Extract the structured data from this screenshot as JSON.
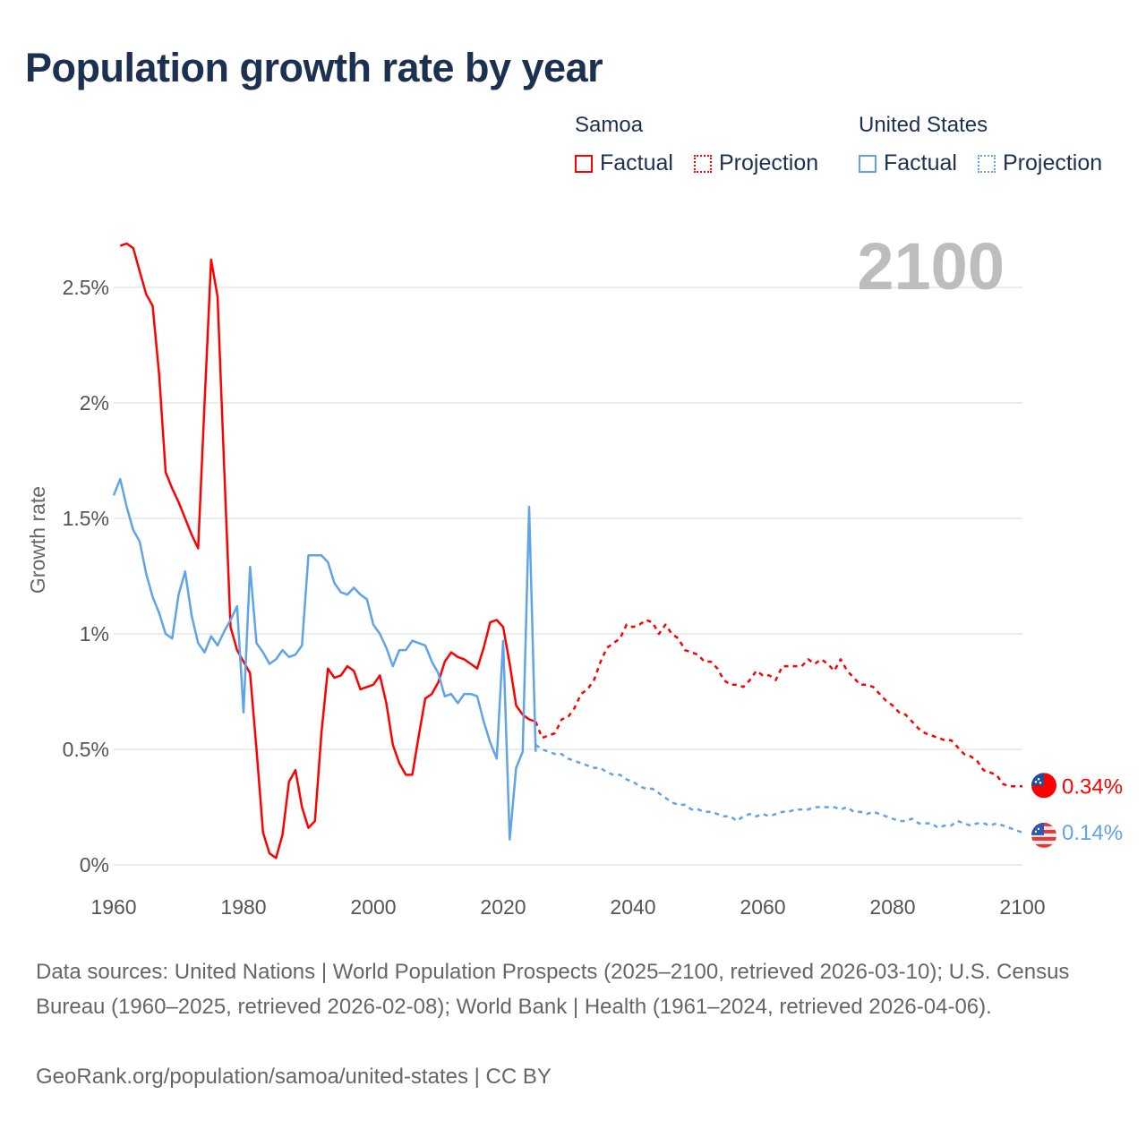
{
  "title": "Population growth rate by year",
  "legend": {
    "groups": [
      {
        "name": "Samoa",
        "color": "#ff0000",
        "factual": "Factual",
        "projection": "Projection"
      },
      {
        "name": "United States",
        "color": "#5fa3e8",
        "factual": "Factual",
        "projection": "Projection"
      }
    ]
  },
  "current_year": "2100",
  "chart_data": {
    "type": "line",
    "title": "Population growth rate by year",
    "xlabel": "",
    "ylabel": "Growth rate",
    "xlim": [
      1960,
      2100
    ],
    "ylim": [
      0,
      2.7
    ],
    "grid": true,
    "x_ticks": [
      "1960",
      "1980",
      "2000",
      "2020",
      "2040",
      "2060",
      "2080",
      "2100"
    ],
    "y_ticks": [
      {
        "v": 0,
        "label": "0%"
      },
      {
        "v": 0.5,
        "label": "0.5%"
      },
      {
        "v": 1,
        "label": "1%"
      },
      {
        "v": 1.5,
        "label": "1.5%"
      },
      {
        "v": 2,
        "label": "2%"
      },
      {
        "v": 2.5,
        "label": "2.5%"
      }
    ],
    "series": [
      {
        "name": "Samoa Factual",
        "color": "#ff0000",
        "dashed": false,
        "start_year": 1961,
        "values": [
          2.68,
          2.69,
          2.67,
          2.57,
          2.47,
          2.42,
          2.12,
          1.7,
          1.63,
          1.57,
          1.5,
          1.43,
          1.37,
          2.0,
          2.62,
          2.46,
          1.73,
          1.03,
          0.93,
          0.88,
          0.83,
          0.5,
          0.14,
          0.05,
          0.03,
          0.13,
          0.36,
          0.41,
          0.25,
          0.16,
          0.19,
          0.57,
          0.85,
          0.81,
          0.82,
          0.86,
          0.84,
          0.76,
          0.77,
          0.78,
          0.82,
          0.7,
          0.52,
          0.44,
          0.39,
          0.39,
          0.56,
          0.72,
          0.74,
          0.79,
          0.88,
          0.92,
          0.9,
          0.89,
          0.87,
          0.85,
          0.94,
          1.05,
          1.06,
          1.03,
          0.87,
          0.69,
          0.65,
          0.63,
          0.62
        ]
      },
      {
        "name": "Samoa Projection",
        "color": "#ff0000",
        "dashed": true,
        "start_year": 2025,
        "values": [
          0.62,
          0.55,
          0.56,
          0.57,
          0.63,
          0.64,
          0.68,
          0.74,
          0.76,
          0.8,
          0.88,
          0.94,
          0.96,
          0.98,
          1.04,
          1.03,
          1.04,
          1.06,
          1.05,
          1.0,
          1.04,
          1.0,
          0.98,
          0.93,
          0.92,
          0.91,
          0.88,
          0.88,
          0.85,
          0.8,
          0.78,
          0.78,
          0.77,
          0.8,
          0.84,
          0.82,
          0.82,
          0.8,
          0.86,
          0.86,
          0.86,
          0.86,
          0.89,
          0.87,
          0.89,
          0.87,
          0.84,
          0.89,
          0.84,
          0.81,
          0.78,
          0.78,
          0.77,
          0.74,
          0.71,
          0.69,
          0.66,
          0.65,
          0.62,
          0.59,
          0.57,
          0.56,
          0.55,
          0.54,
          0.54,
          0.51,
          0.48,
          0.47,
          0.45,
          0.41,
          0.4,
          0.39,
          0.35,
          0.34,
          0.34,
          0.34
        ]
      },
      {
        "name": "United States Factual",
        "color": "#5fa3e8",
        "dashed": false,
        "start_year": 1960,
        "values": [
          1.6,
          1.67,
          1.55,
          1.45,
          1.4,
          1.26,
          1.16,
          1.09,
          1.0,
          0.98,
          1.17,
          1.27,
          1.08,
          0.96,
          0.92,
          0.99,
          0.95,
          1.01,
          1.06,
          1.12,
          0.66,
          1.29,
          0.96,
          0.92,
          0.87,
          0.89,
          0.93,
          0.9,
          0.91,
          0.95,
          1.34,
          1.34,
          1.34,
          1.31,
          1.22,
          1.18,
          1.17,
          1.2,
          1.17,
          1.15,
          1.04,
          1.0,
          0.94,
          0.86,
          0.93,
          0.93,
          0.97,
          0.96,
          0.95,
          0.88,
          0.83,
          0.73,
          0.74,
          0.7,
          0.74,
          0.74,
          0.73,
          0.62,
          0.53,
          0.46,
          0.97,
          0.11,
          0.42,
          0.49,
          1.55,
          0.49
        ]
      },
      {
        "name": "United States Projection",
        "color": "#5fa3e8",
        "dashed": true,
        "start_year": 2025,
        "values": [
          0.52,
          0.5,
          0.49,
          0.48,
          0.48,
          0.46,
          0.45,
          0.44,
          0.43,
          0.42,
          0.42,
          0.4,
          0.39,
          0.39,
          0.37,
          0.36,
          0.34,
          0.33,
          0.33,
          0.31,
          0.29,
          0.27,
          0.26,
          0.26,
          0.24,
          0.24,
          0.23,
          0.23,
          0.22,
          0.21,
          0.21,
          0.19,
          0.21,
          0.22,
          0.21,
          0.22,
          0.21,
          0.22,
          0.23,
          0.23,
          0.24,
          0.24,
          0.24,
          0.25,
          0.25,
          0.25,
          0.25,
          0.24,
          0.25,
          0.23,
          0.23,
          0.22,
          0.23,
          0.22,
          0.21,
          0.2,
          0.19,
          0.19,
          0.2,
          0.18,
          0.18,
          0.18,
          0.16,
          0.17,
          0.17,
          0.19,
          0.18,
          0.17,
          0.18,
          0.18,
          0.17,
          0.18,
          0.17,
          0.16,
          0.15,
          0.14
        ]
      }
    ],
    "end_labels": [
      {
        "country": "Samoa",
        "label": "0.34%",
        "value": 0.34,
        "color": "#ff0000",
        "flag": "samoa-flag"
      },
      {
        "country": "United States",
        "label": "0.14%",
        "value": 0.14,
        "color": "#5fa3e8",
        "flag": "us-flag"
      }
    ]
  },
  "footer": {
    "sources": "Data sources: United Nations | World Population Prospects (2025–2100, retrieved 2026-03-10); U.S. Census Bureau (1960–2025, retrieved 2026-02-08); World Bank | Health (1961–2024, retrieved 2026-04-06).",
    "credit": "GeoRank.org/population/samoa/united-states | CC BY"
  }
}
